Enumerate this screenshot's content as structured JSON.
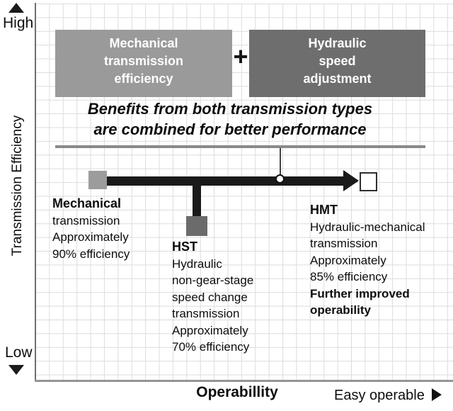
{
  "y_axis": {
    "high": "High",
    "low": "Low",
    "label": "Transmission Efficiency"
  },
  "x_axis": {
    "label": "Operabillity",
    "right_label": "Easy operable"
  },
  "icons": {
    "y_axis_top": "triangle-up",
    "y_axis_bottom": "triangle-down",
    "x_axis_right": "triangle-right",
    "flow_arrow": "thick-right-arrow"
  },
  "header": {
    "left_box_lines": [
      "Mechanical",
      "transmission",
      "efficiency"
    ],
    "plus": "+",
    "right_box_lines": [
      "Hydraulic",
      "speed",
      "adjustment"
    ]
  },
  "banner": {
    "line1": "Benefits from both transmission types",
    "line2": "are combined for better performance"
  },
  "nodes": {
    "mechanical": {
      "title": "Mechanical",
      "lines": [
        "transmission",
        "Approximately",
        "90% efficiency"
      ]
    },
    "hst": {
      "title": "HST",
      "lines": [
        "Hydraulic",
        "non-gear-stage",
        "speed change",
        "transmission",
        "Approximately",
        "70% efficiency"
      ]
    },
    "hmt": {
      "title": "HMT",
      "lines": [
        "Hydraulic-mechanical",
        "transmission",
        "Approximately",
        "85% efficiency"
      ],
      "emphasis": [
        "Further improved",
        "operability"
      ]
    }
  },
  "colors": {
    "left_box_gray": "#9a9a9a",
    "right_box_gray": "#6e6e6e",
    "arrow_black": "#1a1a1a",
    "divider_gray": "#8a8a8a",
    "grid_line": "#dcdcdc",
    "axis_gray": "#949494",
    "text_black": "#0d0d0d"
  }
}
